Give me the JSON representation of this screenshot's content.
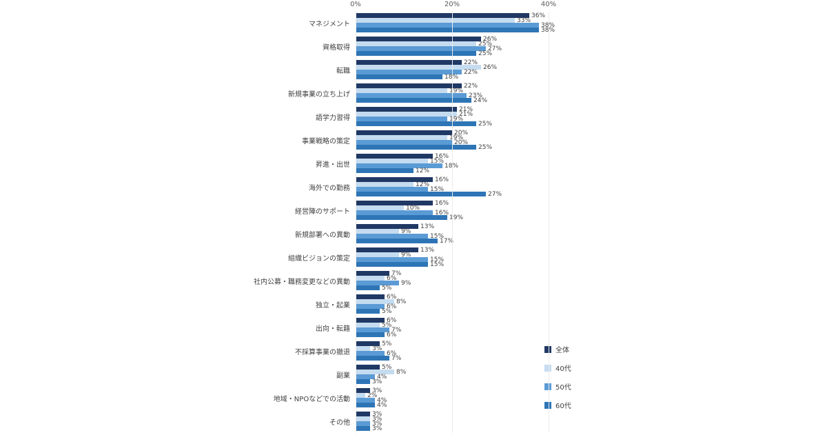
{
  "chart_data": {
    "type": "bar",
    "orientation": "horizontal",
    "title": "",
    "unit": "%",
    "xlim": [
      0,
      40
    ],
    "x_ticks": [
      "0%",
      "20%",
      "40%"
    ],
    "x_tick_values": [
      0,
      20,
      40
    ],
    "grid": false,
    "legend_position": "right-bottom",
    "categories": [
      "マネジメント",
      "資格取得",
      "転職",
      "新規事業の立ち上げ",
      "語学力習得",
      "事業戦略の策定",
      "昇進・出世",
      "海外での勤務",
      "経営陣のサポート",
      "新規部署への異動",
      "組織ビジョンの策定",
      "社内公募・職務変更などの異動",
      "独立・起業",
      "出向・転籍",
      "不採算事業の撤退",
      "副業",
      "地域・NPOなどでの活動",
      "その他"
    ],
    "series": [
      {
        "key": "overall",
        "name": "全体",
        "color": "#203864",
        "values": [
          36,
          26,
          22,
          22,
          21,
          20,
          16,
          16,
          16,
          13,
          13,
          7,
          6,
          6,
          5,
          5,
          3,
          3
        ]
      },
      {
        "key": "40s",
        "name": "40代",
        "color": "#c5dcf0",
        "values": [
          33,
          25,
          26,
          19,
          21,
          19,
          15,
          12,
          10,
          9,
          9,
          6,
          8,
          5,
          3,
          8,
          2,
          3
        ]
      },
      {
        "key": "50s",
        "name": "50代",
        "color": "#5b9bd5",
        "values": [
          38,
          27,
          22,
          23,
          19,
          20,
          18,
          15,
          16,
          15,
          15,
          9,
          6,
          7,
          6,
          4,
          4,
          3
        ]
      },
      {
        "key": "60s",
        "name": "60代",
        "color": "#2e75b6",
        "values": [
          38,
          25,
          18,
          24,
          25,
          25,
          12,
          27,
          19,
          17,
          15,
          5,
          5,
          6,
          7,
          3,
          4,
          3
        ]
      }
    ]
  }
}
